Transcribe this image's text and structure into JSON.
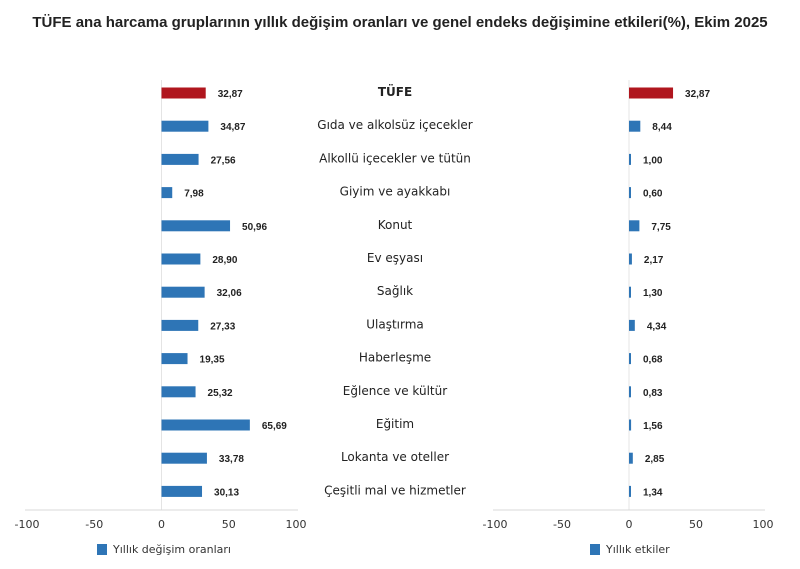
{
  "chart_data": [
    {
      "type": "bar",
      "orientation": "horizontal",
      "title": "TÜFE ana harcama gruplarının yıllık değişim oranları ve genel endeks değişimine etkileri(%), Ekim 2025",
      "categories": [
        "TÜFE",
        "Gıda ve alkolsüz içecekler",
        "Alkollü içecekler ve tütün",
        "Giyim ve ayakkabı",
        "Konut",
        "Ev eşyası",
        "Sağlık",
        "Ulaştırma",
        "Haberleşme",
        "Eğlence ve kültür",
        "Eğitim",
        "Lokanta ve oteller",
        "Çeşitli mal ve hizmetler"
      ],
      "series": [
        {
          "name": "Yıllık değişim oranları",
          "values": [
            32.87,
            34.87,
            27.56,
            7.98,
            50.96,
            28.9,
            32.06,
            27.33,
            19.35,
            25.32,
            65.69,
            33.78,
            30.13
          ]
        }
      ],
      "data_labels": [
        "32,87",
        "34,87",
        "27,56",
        "7,98",
        "50,96",
        "28,90",
        "32,06",
        "27,33",
        "19,35",
        "25,32",
        "65,69",
        "33,78",
        "30,13"
      ],
      "xlim": [
        -100,
        100
      ],
      "xticks": [
        "-100",
        "-50",
        "0",
        "50",
        "100"
      ],
      "legend": "bottom",
      "colors": {
        "bar": "#2e75b6",
        "highlight": "#b0161e"
      }
    },
    {
      "type": "bar",
      "orientation": "horizontal",
      "series": [
        {
          "name": "Yıllık etkiler",
          "values": [
            32.87,
            8.44,
            1.0,
            0.6,
            7.75,
            2.17,
            1.3,
            4.34,
            0.68,
            0.83,
            1.56,
            2.85,
            1.34
          ]
        }
      ],
      "data_labels": [
        "32,87",
        "8,44",
        "1,00",
        "0,60",
        "7,75",
        "2,17",
        "1,30",
        "4,34",
        "0,68",
        "0,83",
        "1,56",
        "2,85",
        "1,34"
      ],
      "xlim": [
        -100,
        100
      ],
      "xticks": [
        "-100",
        "-50",
        "0",
        "50",
        "100"
      ],
      "legend": "bottom",
      "colors": {
        "bar": "#2e75b6",
        "highlight": "#b0161e"
      }
    }
  ]
}
